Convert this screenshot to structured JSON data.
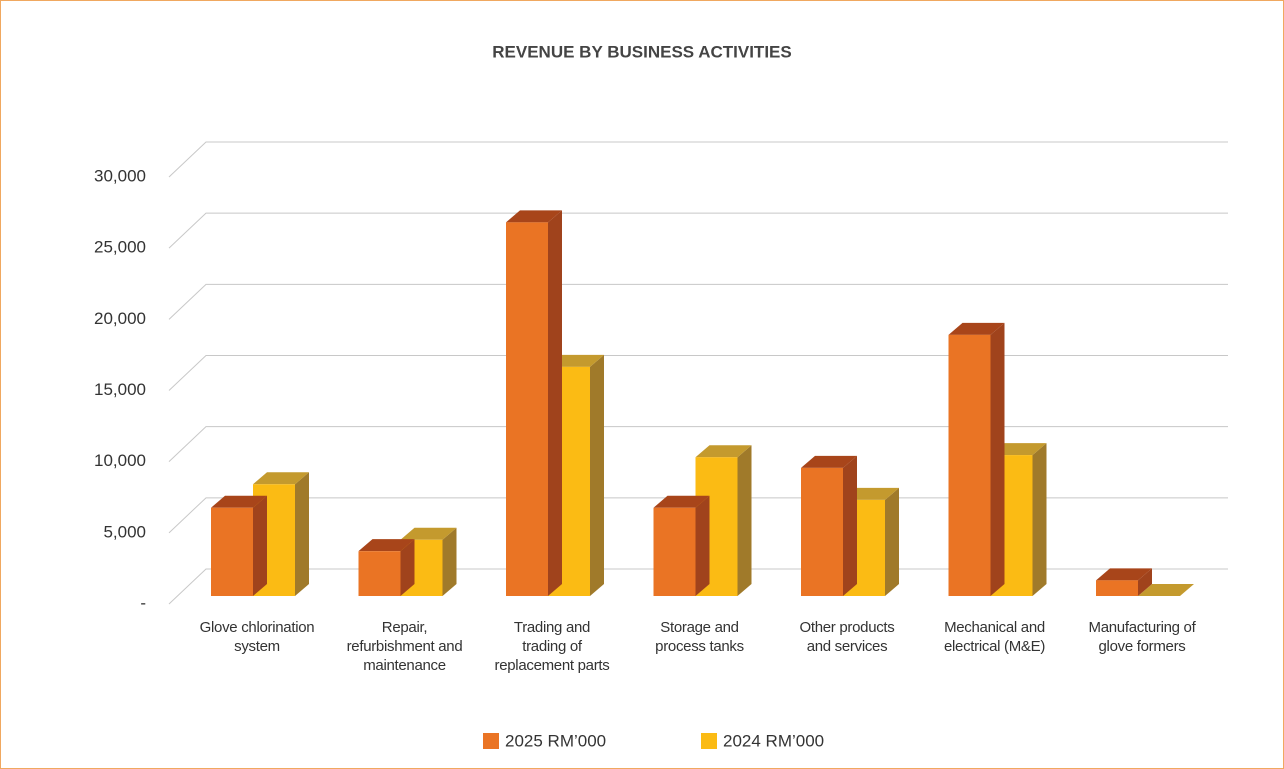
{
  "chart_data": {
    "type": "bar3d",
    "title": "REVENUE BY BUSINESS ACTIVITIES",
    "categories": [
      "Glove chlorination\nsystem",
      "Repair,\nrefurbishment and\nmaintenance",
      "Trading and\ntrading of\nreplacement parts",
      "Storage and\nprocess tanks",
      "Other products\nand services",
      "Mechanical and\nelectrical (M&E)",
      "Manufacturing of\nglove formers"
    ],
    "series": [
      {
        "name": "2025 RM’000",
        "color": "#ea7424",
        "side": "#a0431c",
        "top": "#a8451a",
        "values": [
          6200,
          3150,
          26250,
          6200,
          9000,
          18350,
          1100
        ]
      },
      {
        "name": "2024 RM’000",
        "color": "#fbbb14",
        "side": "#a07a2a",
        "top": "#c49a2e",
        "values": [
          7850,
          3950,
          16100,
          9750,
          6750,
          9900,
          0
        ]
      }
    ],
    "ylim": [
      0,
      30000
    ],
    "yticks": [
      {
        "value": 0,
        "label": "-"
      },
      {
        "value": 5000,
        "label": "5,000"
      },
      {
        "value": 10000,
        "label": "10,000"
      },
      {
        "value": 15000,
        "label": "15,000"
      },
      {
        "value": 20000,
        "label": "20,000"
      },
      {
        "value": 25000,
        "label": "25,000"
      },
      {
        "value": 30000,
        "label": "30,000"
      }
    ],
    "grid": true
  }
}
